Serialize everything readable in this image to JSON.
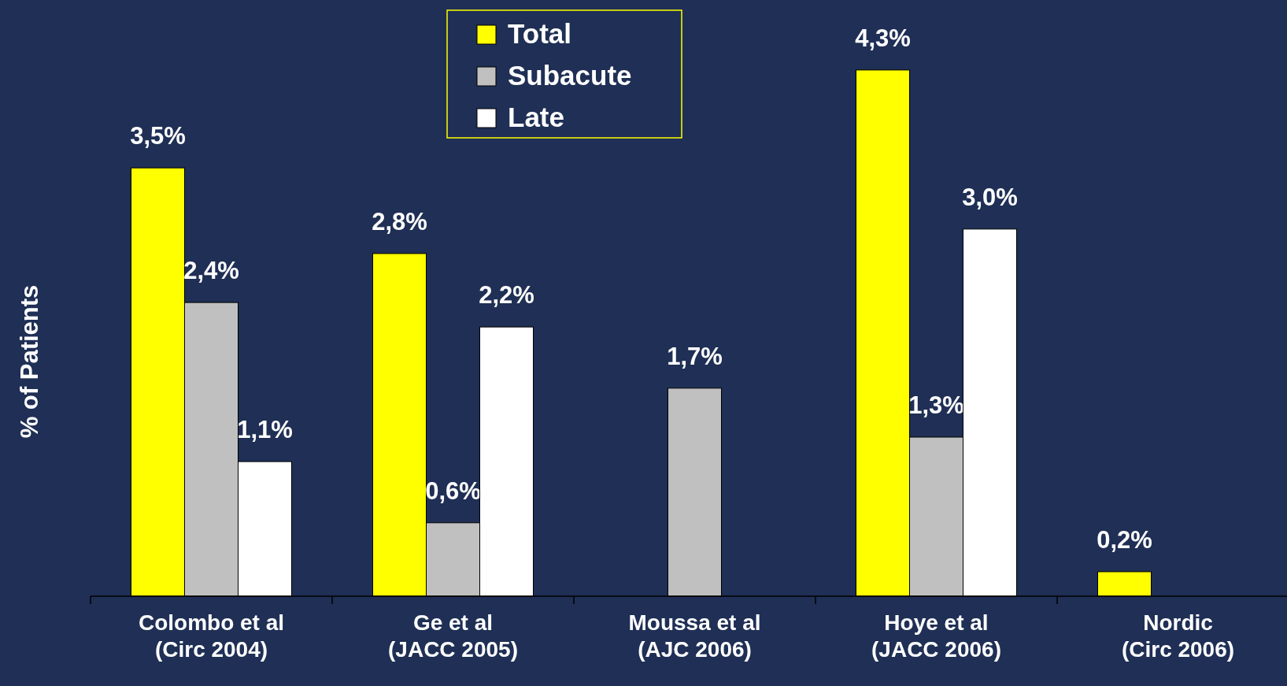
{
  "chart_data": {
    "type": "bar",
    "ylabel": "% of Patients",
    "categories": [
      "Colombo et al\n(Circ 2004)",
      "Ge et al\n(JACC 2005)",
      "Moussa et al\n(AJC 2006)",
      "Hoye et al\n(JACC 2006)",
      "Nordic\n(Circ 2006)"
    ],
    "series": [
      {
        "name": "Total",
        "color": "#ffff00",
        "values": [
          3.5,
          2.8,
          null,
          4.3,
          0.2
        ],
        "value_labels": [
          "3,5%",
          "2,8%",
          null,
          "4,3%",
          "0,2%"
        ]
      },
      {
        "name": "Subacute",
        "color": "#c0c0c0",
        "values": [
          2.4,
          0.6,
          1.7,
          1.3,
          null
        ],
        "value_labels": [
          "2,4%",
          "0,6%",
          "1,7%",
          "1,3%",
          null
        ]
      },
      {
        "name": "Late",
        "color": "#ffffff",
        "values": [
          1.1,
          2.2,
          null,
          3.0,
          null
        ],
        "value_labels": [
          "1,1%",
          "2,2%",
          null,
          "3,0%",
          null
        ]
      }
    ],
    "legend": "top"
  }
}
